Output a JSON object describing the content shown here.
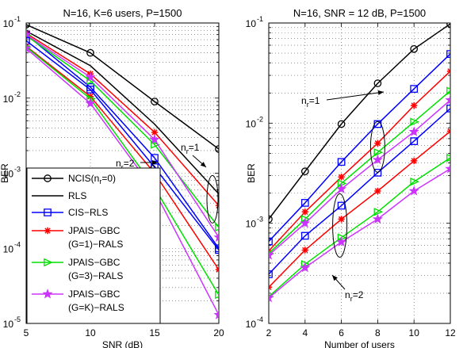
{
  "chart_data": [
    {
      "type": "line",
      "title": "N=16, K=6 users, P=1500",
      "xlabel": "SNR (dB)",
      "ylabel": "BER",
      "xscale": "linear",
      "yscale": "log",
      "xlim": [
        5,
        20
      ],
      "ylim": [
        1e-05,
        0.1
      ],
      "xticks": [
        5,
        10,
        15,
        20
      ],
      "yticks": [
        {
          "value": 1e-05,
          "base": "10",
          "exp": "-5"
        },
        {
          "value": 0.0001,
          "base": "10",
          "exp": "-4"
        },
        {
          "value": 0.001,
          "base": "10",
          "exp": "-3"
        },
        {
          "value": 0.01,
          "base": "10",
          "exp": "-2"
        },
        {
          "value": 0.1,
          "base": "10",
          "exp": "-1"
        }
      ],
      "grid": true,
      "legend_position": "bottom-left",
      "x": [
        5,
        10,
        15,
        20
      ],
      "series": [
        {
          "name": "NCIS(n_r=0)",
          "color": "#000000",
          "marker": "circle",
          "values": [
            0.095,
            0.04,
            0.009,
            0.0021
          ]
        },
        {
          "name": "RLS",
          "color": "#000000",
          "marker": "none",
          "values": [
            0.078,
            0.027,
            0.0045,
            0.00053
          ]
        },
        {
          "name": "CIS-RLS",
          "color": "#0000ff",
          "marker": "square",
          "values": [
            0.07,
            0.014,
            0.0016,
            0.0001
          ]
        },
        {
          "name": "JPAIS-GBC (G=1)-RALS",
          "color": "#ff0000",
          "marker": "asterisk",
          "values": [
            0.073,
            0.021,
            0.0035,
            0.00037
          ]
        },
        {
          "name": "JPAIS-GBC (G=3)-RALS",
          "color": "#00e000",
          "marker": "triangle",
          "values": [
            0.068,
            0.017,
            0.0024,
            0.00019
          ]
        },
        {
          "name": "JPAIS-GBC (G=K)-RALS",
          "color": "#cc33ff",
          "marker": "star",
          "values": [
            0.07,
            0.019,
            0.0028,
            0.00014
          ]
        },
        {
          "name": "",
          "color": "#0000ff",
          "marker": "square",
          "values": [
            0.058,
            0.013,
            0.0012,
            9.5e-05
          ]
        },
        {
          "name": "",
          "color": "#ff0000",
          "marker": "asterisk",
          "values": [
            0.049,
            0.0105,
            0.001,
            5.2e-05
          ]
        },
        {
          "name": "",
          "color": "#00e000",
          "marker": "triangle",
          "values": [
            0.048,
            0.0098,
            0.00064,
            2.4e-05
          ]
        },
        {
          "name": "",
          "color": "#cc33ff",
          "marker": "star",
          "values": [
            0.046,
            0.0085,
            0.00058,
            1.3e-05
          ]
        }
      ],
      "annotations": [
        {
          "text": "n",
          "sub": "r",
          "suffix": "=1"
        },
        {
          "text": "n",
          "sub": "r",
          "suffix": "=2"
        }
      ]
    },
    {
      "type": "line",
      "title": "N=16, SNR = 12 dB, P=1500",
      "xlabel": "Number of users",
      "ylabel": "BER",
      "xscale": "linear",
      "yscale": "log",
      "xlim": [
        2,
        12
      ],
      "ylim": [
        0.0001,
        0.1
      ],
      "xticks": [
        2,
        4,
        6,
        8,
        10,
        12
      ],
      "yticks": [
        {
          "value": 0.0001,
          "base": "10",
          "exp": "-4"
        },
        {
          "value": 0.001,
          "base": "10",
          "exp": "-3"
        },
        {
          "value": 0.01,
          "base": "10",
          "exp": "-2"
        },
        {
          "value": 0.1,
          "base": "10",
          "exp": "-1"
        }
      ],
      "grid": true,
      "x": [
        2,
        4,
        6,
        8,
        10,
        12
      ],
      "series": [
        {
          "name": "",
          "color": "#000000",
          "marker": "circle",
          "values": [
            0.0011,
            0.0033,
            0.0098,
            0.025,
            0.055,
            0.098
          ]
        },
        {
          "name": "",
          "color": "#0000ff",
          "marker": "square",
          "values": [
            0.00066,
            0.0016,
            0.0041,
            0.0098,
            0.022,
            0.049
          ]
        },
        {
          "name": "",
          "color": "#ff0000",
          "marker": "asterisk",
          "values": [
            0.00053,
            0.0013,
            0.0029,
            0.0063,
            0.015,
            0.033
          ]
        },
        {
          "name": "",
          "color": "#00e000",
          "marker": "triangle",
          "values": [
            0.0005,
            0.0011,
            0.0025,
            0.0051,
            0.0103,
            0.021
          ]
        },
        {
          "name": "",
          "color": "#cc33ff",
          "marker": "star",
          "values": [
            0.00048,
            0.001,
            0.0022,
            0.0043,
            0.0082,
            0.017
          ]
        },
        {
          "name": "",
          "color": "#0000ff",
          "marker": "square",
          "values": [
            0.00031,
            0.00075,
            0.0015,
            0.0032,
            0.0066,
            0.014
          ]
        },
        {
          "name": "",
          "color": "#ff0000",
          "marker": "asterisk",
          "values": [
            0.00023,
            0.00054,
            0.0011,
            0.0021,
            0.0042,
            0.0083
          ]
        },
        {
          "name": "",
          "color": "#00e000",
          "marker": "triangle",
          "values": [
            0.000185,
            0.00039,
            0.00072,
            0.0013,
            0.0026,
            0.0045
          ]
        },
        {
          "name": "",
          "color": "#cc33ff",
          "marker": "star",
          "values": [
            0.00018,
            0.00036,
            0.00065,
            0.0011,
            0.0021,
            0.0035
          ]
        }
      ],
      "annotations": [
        {
          "text": "n",
          "sub": "r",
          "suffix": "=1"
        },
        {
          "text": "n",
          "sub": "r",
          "suffix": "=2"
        }
      ]
    }
  ]
}
